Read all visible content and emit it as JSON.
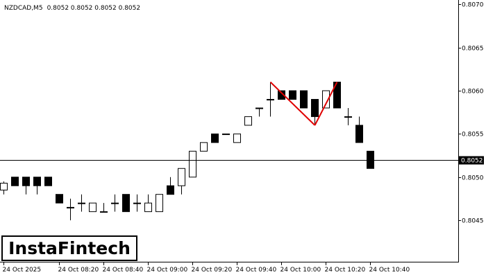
{
  "chart_data": {
    "type": "candlestick",
    "symbol_label": "NZDCAD,M5",
    "ohlc_label": "0.8052 0.8052 0.8052 0.8052",
    "current_price_label": "0.8052",
    "current_price": 0.8052,
    "y_ticks": [
      "0.8045",
      "0.8050",
      "0.8055",
      "0.8060",
      "0.8065",
      "0.8070"
    ],
    "y_tick_values": [
      0.8045,
      0.805,
      0.8055,
      0.806,
      0.8065,
      0.807
    ],
    "ylim": [
      0.80402,
      0.80705
    ],
    "x_tick_labels": [
      {
        "label": "24 Oct 2025",
        "index": 0
      },
      {
        "label": "24 Oct 08:20",
        "index": 5
      },
      {
        "label": "24 Oct 08:40",
        "index": 9
      },
      {
        "label": "24 Oct 09:00",
        "index": 13
      },
      {
        "label": "24 Oct 09:20",
        "index": 17
      },
      {
        "label": "24 Oct 09:40",
        "index": 21
      },
      {
        "label": "24 Oct 10:00",
        "index": 25
      },
      {
        "label": "24 Oct 10:20",
        "index": 29
      },
      {
        "label": "24 Oct 10:40",
        "index": 33
      }
    ],
    "candles": [
      {
        "o": 0.80485,
        "h": 0.80495,
        "l": 0.8048,
        "c": 0.80493
      },
      {
        "o": 0.805,
        "h": 0.805,
        "l": 0.8049,
        "c": 0.8049
      },
      {
        "o": 0.805,
        "h": 0.805,
        "l": 0.8048,
        "c": 0.8049
      },
      {
        "o": 0.805,
        "h": 0.805,
        "l": 0.8048,
        "c": 0.8049
      },
      {
        "o": 0.805,
        "h": 0.805,
        "l": 0.8049,
        "c": 0.8049
      },
      {
        "o": 0.8048,
        "h": 0.8048,
        "l": 0.8047,
        "c": 0.8047
      },
      {
        "o": 0.80465,
        "h": 0.80475,
        "l": 0.8045,
        "c": 0.80465
      },
      {
        "o": 0.8047,
        "h": 0.8048,
        "l": 0.8046,
        "c": 0.8047
      },
      {
        "o": 0.8046,
        "h": 0.8047,
        "l": 0.8046,
        "c": 0.8047
      },
      {
        "o": 0.8046,
        "h": 0.8047,
        "l": 0.8046,
        "c": 0.8046
      },
      {
        "o": 0.8047,
        "h": 0.8048,
        "l": 0.8046,
        "c": 0.8047
      },
      {
        "o": 0.8048,
        "h": 0.8048,
        "l": 0.8046,
        "c": 0.8046
      },
      {
        "o": 0.8047,
        "h": 0.8048,
        "l": 0.8046,
        "c": 0.8047
      },
      {
        "o": 0.8046,
        "h": 0.8048,
        "l": 0.8046,
        "c": 0.8047
      },
      {
        "o": 0.8046,
        "h": 0.8048,
        "l": 0.8046,
        "c": 0.8048
      },
      {
        "o": 0.8049,
        "h": 0.805,
        "l": 0.8048,
        "c": 0.8048
      },
      {
        "o": 0.8049,
        "h": 0.8051,
        "l": 0.8048,
        "c": 0.8051
      },
      {
        "o": 0.805,
        "h": 0.8053,
        "l": 0.805,
        "c": 0.8053
      },
      {
        "o": 0.8053,
        "h": 0.8054,
        "l": 0.8053,
        "c": 0.8054
      },
      {
        "o": 0.8055,
        "h": 0.8055,
        "l": 0.8054,
        "c": 0.8054
      },
      {
        "o": 0.8055,
        "h": 0.8055,
        "l": 0.8055,
        "c": 0.8055
      },
      {
        "o": 0.8054,
        "h": 0.8055,
        "l": 0.8054,
        "c": 0.8055
      },
      {
        "o": 0.8056,
        "h": 0.8057,
        "l": 0.8056,
        "c": 0.8057
      },
      {
        "o": 0.8058,
        "h": 0.8058,
        "l": 0.8057,
        "c": 0.8058
      },
      {
        "o": 0.8059,
        "h": 0.8061,
        "l": 0.8057,
        "c": 0.8059
      },
      {
        "o": 0.806,
        "h": 0.806,
        "l": 0.8059,
        "c": 0.8059
      },
      {
        "o": 0.806,
        "h": 0.806,
        "l": 0.8059,
        "c": 0.8059
      },
      {
        "o": 0.806,
        "h": 0.806,
        "l": 0.8058,
        "c": 0.8058
      },
      {
        "o": 0.8059,
        "h": 0.8059,
        "l": 0.8056,
        "c": 0.8057
      },
      {
        "o": 0.8058,
        "h": 0.806,
        "l": 0.8058,
        "c": 0.806
      },
      {
        "o": 0.8061,
        "h": 0.8061,
        "l": 0.8058,
        "c": 0.8058
      },
      {
        "o": 0.8057,
        "h": 0.8058,
        "l": 0.8056,
        "c": 0.8057
      },
      {
        "o": 0.8056,
        "h": 0.8057,
        "l": 0.8054,
        "c": 0.8054
      },
      {
        "o": 0.8053,
        "h": 0.8053,
        "l": 0.8051,
        "c": 0.8051
      }
    ],
    "pattern_points": [
      {
        "index": 24,
        "price": 0.8061
      },
      {
        "index": 28,
        "price": 0.8056
      },
      {
        "index": 30,
        "price": 0.8061
      }
    ],
    "colors": {
      "bull_fill": "#ffffff",
      "bear_fill": "#000000",
      "pattern_line": "#e00000",
      "axis": "#000000",
      "background": "#ffffff"
    },
    "grid": false
  },
  "logo": {
    "text": "InstaFintech"
  }
}
